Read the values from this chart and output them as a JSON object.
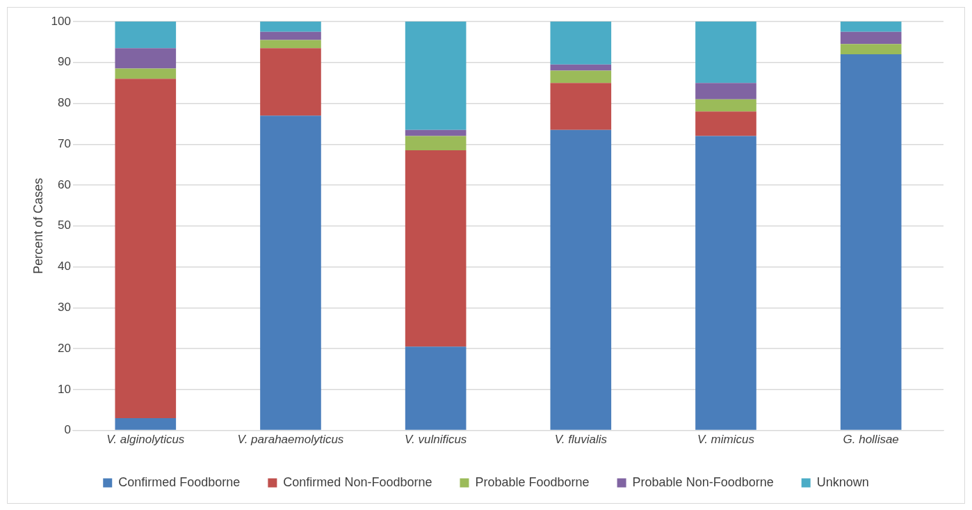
{
  "chart_data": {
    "type": "bar",
    "stacked": true,
    "ylabel": "Percent of Cases",
    "categories": [
      "V. alginolyticus",
      "V. parahaemolyticus",
      "V. vulnificus",
      "V. fluvialis",
      "V. mimicus",
      "G. hollisae"
    ],
    "series": [
      {
        "name": "Confirmed Foodborne",
        "color": "#4a7ebb",
        "values": [
          3,
          77,
          20.5,
          73.5,
          72,
          92
        ]
      },
      {
        "name": "Confirmed Non-Foodborne",
        "color": "#c0504d",
        "values": [
          83,
          16.5,
          48,
          11.5,
          6,
          0
        ]
      },
      {
        "name": "Probable Foodborne",
        "color": "#9bbb59",
        "values": [
          2.5,
          2,
          3.5,
          3,
          3,
          2.5
        ]
      },
      {
        "name": "Probable Non-Foodborne",
        "color": "#8064a2",
        "values": [
          5,
          2,
          1.5,
          1.5,
          4,
          3
        ]
      },
      {
        "name": "Unknown",
        "color": "#4bacc6",
        "values": [
          6.5,
          2.5,
          26.5,
          10.5,
          15,
          2.5
        ]
      }
    ],
    "ylim": [
      0,
      100
    ],
    "yticks": [
      0,
      10,
      20,
      30,
      40,
      50,
      60,
      70,
      80,
      90,
      100
    ],
    "grid": "y",
    "legend": "bottom"
  }
}
